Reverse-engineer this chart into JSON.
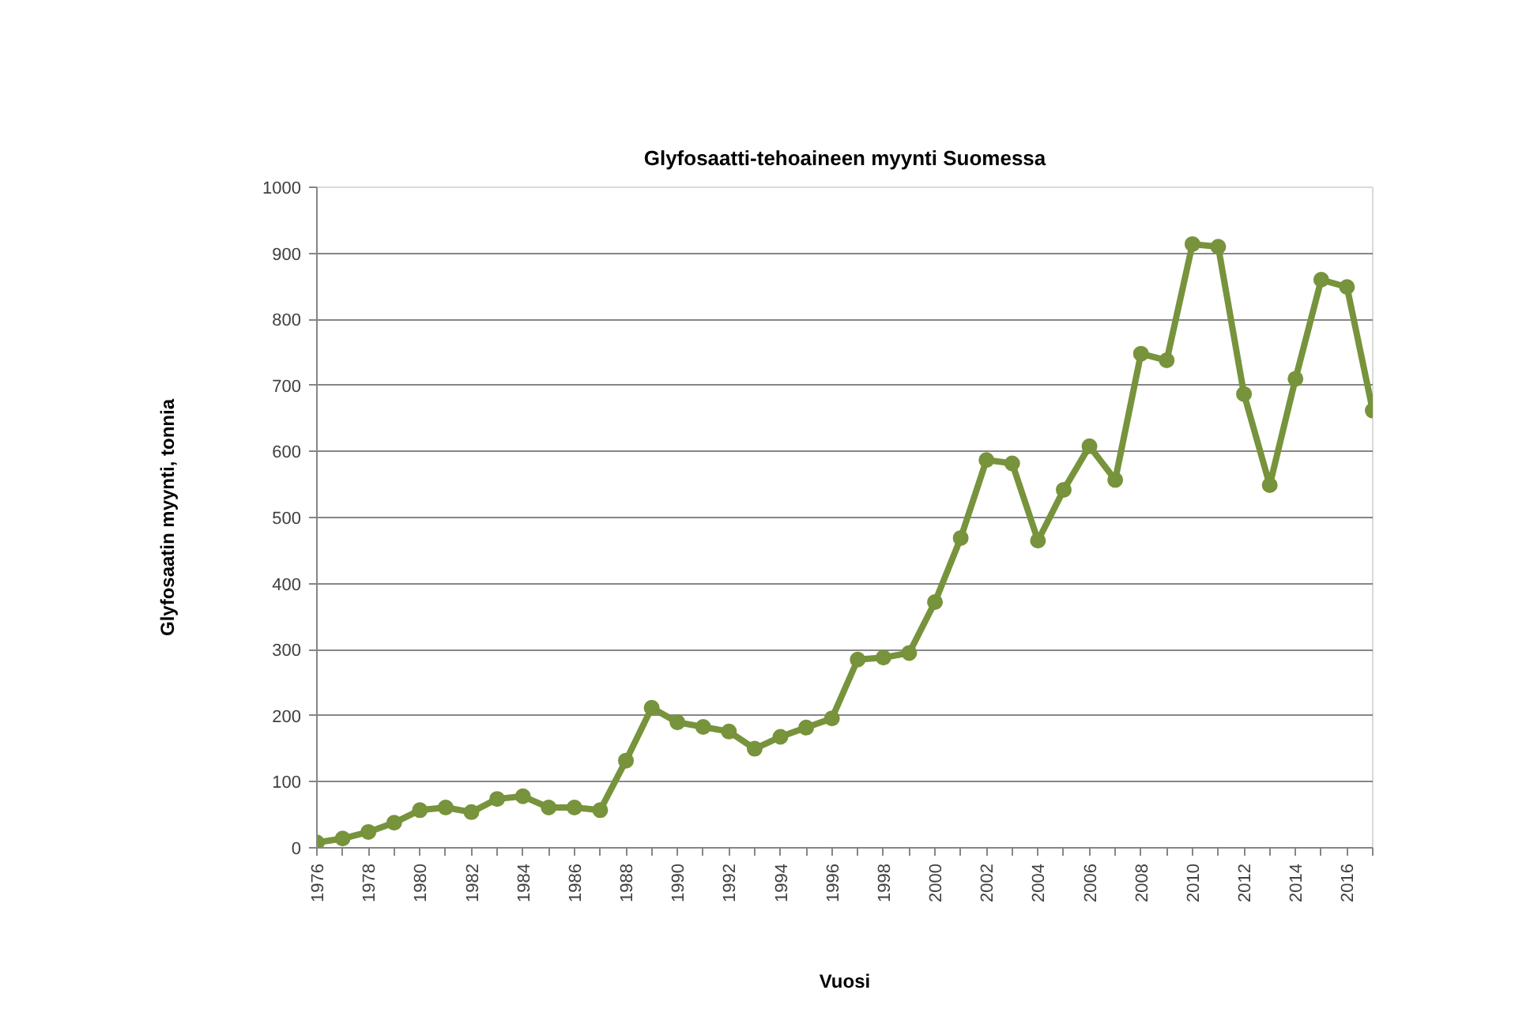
{
  "chart_data": {
    "type": "line",
    "title": "Glyfosaatti-tehoaineen myynti Suomessa",
    "xlabel": "Vuosi",
    "ylabel": "Glyfosaatin myynti, tonnia",
    "x": [
      1976,
      1977,
      1978,
      1979,
      1980,
      1981,
      1982,
      1983,
      1984,
      1985,
      1986,
      1987,
      1988,
      1989,
      1990,
      1991,
      1992,
      1993,
      1994,
      1995,
      1996,
      1997,
      1998,
      1999,
      2000,
      2001,
      2002,
      2003,
      2004,
      2005,
      2006,
      2007,
      2008,
      2009,
      2010,
      2011,
      2012,
      2013,
      2014,
      2015,
      2016,
      2017
    ],
    "series": [
      {
        "color": "#77933c",
        "values": [
          8,
          14,
          24,
          38,
          57,
          61,
          54,
          74,
          78,
          61,
          61,
          57,
          132,
          212,
          190,
          183,
          176,
          150,
          168,
          182,
          196,
          285,
          288,
          295,
          372,
          469,
          587,
          582,
          465,
          542,
          608,
          557,
          748,
          738,
          914,
          910,
          687,
          549,
          710,
          860,
          849,
          662
        ]
      }
    ],
    "xlim": [
      1976,
      2017
    ],
    "xticks": [
      1976,
      {
        "value": 1977,
        "label": null
      },
      1978,
      {
        "value": 1979,
        "label": null
      },
      1980,
      {
        "value": 1981,
        "label": null
      },
      1982,
      {
        "value": 1983,
        "label": null
      },
      1984,
      {
        "value": 1985,
        "label": null
      },
      1986,
      {
        "value": 1987,
        "label": null
      },
      1988,
      {
        "value": 1989,
        "label": null
      },
      1990,
      {
        "value": 1991,
        "label": null
      },
      1992,
      {
        "value": 1993,
        "label": null
      },
      1994,
      {
        "value": 1995,
        "label": null
      },
      1996,
      {
        "value": 1997,
        "label": null
      },
      1998,
      {
        "value": 1999,
        "label": null
      },
      2000,
      {
        "value": 2001,
        "label": null
      },
      2002,
      {
        "value": 2003,
        "label": null
      },
      2004,
      {
        "value": 2005,
        "label": null
      },
      2006,
      {
        "value": 2007,
        "label": null
      },
      2008,
      {
        "value": 2009,
        "label": null
      },
      2010,
      {
        "value": 2011,
        "label": null
      },
      2012,
      {
        "value": 2013,
        "label": null
      },
      2014,
      {
        "value": 2015,
        "label": null
      },
      2016,
      {
        "value": 2017,
        "label": null
      }
    ],
    "ylim": [
      0,
      1000
    ],
    "yticks": [
      0,
      100,
      200,
      300,
      400,
      500,
      600,
      700,
      800,
      900,
      1000
    ],
    "grid": "y",
    "marker": "circle",
    "line_style": "solid"
  }
}
